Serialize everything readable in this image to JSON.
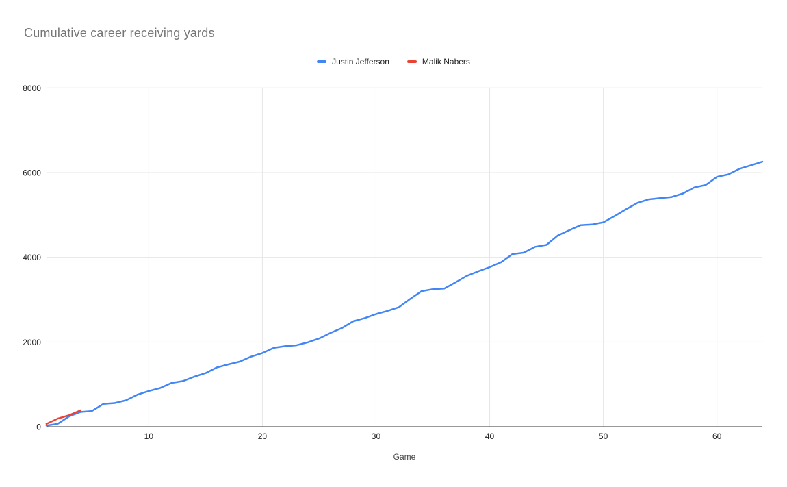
{
  "chart_title": "Cumulative career receiving yards",
  "legend": {
    "position": "top-center",
    "items": [
      {
        "label": "Justin Jefferson",
        "color": "#4285F4"
      },
      {
        "label": "Malik Nabers",
        "color": "#EA4335"
      }
    ]
  },
  "axes": {
    "x_title": "Game",
    "x_ticks": [
      10,
      20,
      30,
      40,
      50,
      60
    ],
    "y_ticks": [
      0,
      2000,
      4000,
      6000,
      8000
    ],
    "grid_color": "#e6e6e6",
    "axis_line_color": "#333333",
    "tick_label_color": "#222222",
    "axis_title_color": "#444444"
  },
  "chart_data": {
    "type": "line",
    "title": "Cumulative career receiving yards",
    "xlabel": "Game",
    "ylabel": "",
    "xlim": [
      1,
      64
    ],
    "ylim": [
      0,
      8000
    ],
    "grid": true,
    "legend_position": "top-center",
    "x": [
      1,
      2,
      3,
      4,
      5,
      6,
      7,
      8,
      9,
      10,
      11,
      12,
      13,
      14,
      15,
      16,
      17,
      18,
      19,
      20,
      21,
      22,
      23,
      24,
      25,
      26,
      27,
      28,
      29,
      30,
      31,
      32,
      33,
      34,
      35,
      36,
      37,
      38,
      39,
      40,
      41,
      42,
      43,
      44,
      45,
      46,
      47,
      48,
      49,
      50,
      51,
      52,
      53,
      54,
      55,
      56,
      57,
      58,
      59,
      60,
      61,
      62,
      63,
      64
    ],
    "series": [
      {
        "name": "Justin Jefferson",
        "color": "#4285F4",
        "values": [
          26,
          70,
          245,
          348,
          371,
          537,
          558,
          622,
          757,
          843,
          913,
          1034,
          1077,
          1181,
          1266,
          1400,
          1471,
          1536,
          1654,
          1738,
          1862,
          1902,
          1923,
          1992,
          2085,
          2215,
          2330,
          2490,
          2565,
          2660,
          2735,
          2820,
          3016,
          3200,
          3248,
          3262,
          3409,
          3563,
          3670,
          3768,
          3883,
          4076,
          4109,
          4248,
          4293,
          4516,
          4639,
          4758,
          4773,
          4825,
          4975,
          5134,
          5283,
          5368,
          5396,
          5423,
          5507,
          5648,
          5707,
          5899,
          5958,
          6091,
          6172,
          6257
        ]
      },
      {
        "name": "Malik Nabers",
        "color": "#EA4335",
        "values": [
          66,
          193,
          271,
          386
        ]
      }
    ]
  }
}
